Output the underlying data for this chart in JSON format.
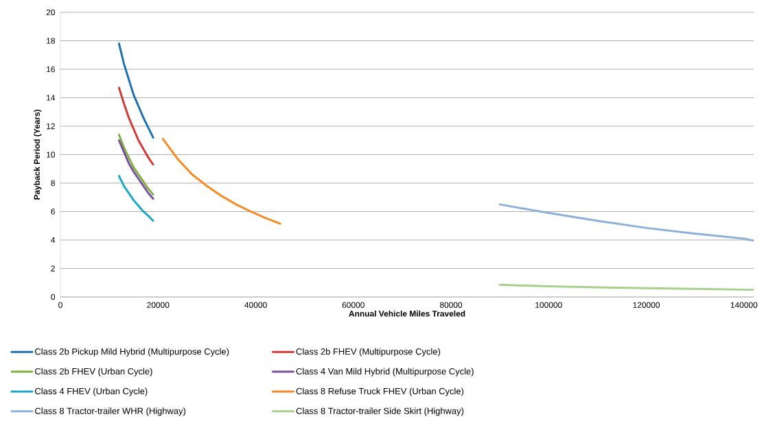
{
  "chart_data": {
    "type": "line",
    "xlabel": "Annual Vehicle Miles Traveled",
    "ylabel": "Payback Period (Years)",
    "xlim": [
      0,
      142000
    ],
    "xticks": [
      0,
      20000,
      40000,
      60000,
      80000,
      100000,
      120000,
      140000
    ],
    "ylim": [
      0,
      20
    ],
    "yticks": [
      0,
      2,
      4,
      6,
      8,
      10,
      12,
      14,
      16,
      18,
      20
    ],
    "grid": "y",
    "legend": "bottom",
    "marker": "none",
    "line_style": "solid",
    "series": [
      {
        "name": "Class 2b Pickup Mild Hybrid (Multipurpose Cycle)",
        "color": "#1f6fb4",
        "x": [
          12000,
          13000,
          14000,
          15000,
          16000,
          17000,
          18000,
          19000
        ],
        "values": [
          17.8,
          16.4,
          15.3,
          14.2,
          13.4,
          12.6,
          11.9,
          11.2
        ]
      },
      {
        "name": "Class 2b FHEV (Multipurpose Cycle)",
        "color": "#d23a35",
        "x": [
          12000,
          13000,
          14000,
          15000,
          16000,
          17000,
          18000,
          19000
        ],
        "values": [
          14.7,
          13.6,
          12.6,
          11.8,
          11.0,
          10.4,
          9.8,
          9.3
        ]
      },
      {
        "name": "Class 2b FHEV (Urban Cycle)",
        "color": "#7fb13e",
        "x": [
          12000,
          13000,
          14000,
          15000,
          16000,
          17000,
          18000,
          19000
        ],
        "values": [
          11.4,
          10.5,
          9.8,
          9.1,
          8.6,
          8.1,
          7.6,
          7.2
        ]
      },
      {
        "name": "Class 4 Van Mild Hybrid (Multipurpose Cycle)",
        "color": "#7b4fa0",
        "x": [
          12000,
          13000,
          14000,
          15000,
          16000,
          17000,
          18000,
          19000
        ],
        "values": [
          11.0,
          10.2,
          9.4,
          8.8,
          8.3,
          7.8,
          7.3,
          6.9
        ]
      },
      {
        "name": "Class 4 FHEV (Urban Cycle)",
        "color": "#1ba8c4",
        "x": [
          12000,
          13000,
          14000,
          15000,
          16000,
          17000,
          18000,
          19000
        ],
        "values": [
          8.5,
          7.8,
          7.3,
          6.8,
          6.4,
          6.0,
          5.7,
          5.35
        ]
      },
      {
        "name": "Class 8 Refuse Truck FHEV (Urban Cycle)",
        "color": "#f58a24",
        "x": [
          21000,
          24000,
          27000,
          30000,
          33000,
          36000,
          39000,
          42000,
          45000
        ],
        "values": [
          11.1,
          9.7,
          8.6,
          7.8,
          7.1,
          6.5,
          6.0,
          5.55,
          5.15
        ]
      },
      {
        "name": "Class 8 Tractor-trailer WHR (Highway)",
        "color": "#8cb0dc",
        "x": [
          90000,
          100000,
          110000,
          120000,
          130000,
          140000,
          142000
        ],
        "values": [
          6.5,
          5.9,
          5.35,
          4.85,
          4.45,
          4.1,
          3.95
        ]
      },
      {
        "name": "Class 8 Tractor-trailer Side Skirt (Highway)",
        "color": "#a8d08d",
        "x": [
          90000,
          100000,
          110000,
          120000,
          130000,
          142000
        ],
        "values": [
          0.85,
          0.75,
          0.68,
          0.62,
          0.57,
          0.5
        ]
      }
    ]
  }
}
